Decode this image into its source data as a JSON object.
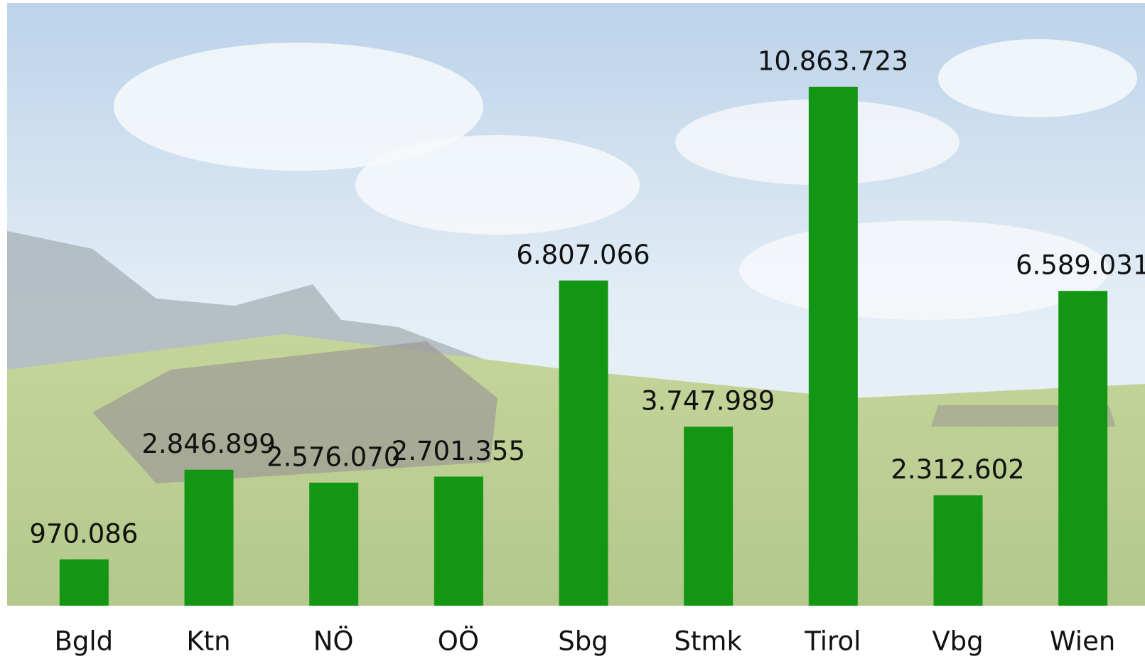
{
  "chart_data": {
    "type": "bar",
    "categories": [
      "Bgld",
      "Ktn",
      "NÖ",
      "OÖ",
      "Sbg",
      "Stmk",
      "Tirol",
      "Vbg",
      "Wien"
    ],
    "values": [
      970086,
      2846899,
      2576070,
      2701355,
      6807066,
      3747989,
      10863723,
      2312602,
      6589031
    ],
    "value_labels": [
      "970.086",
      "2.846.899",
      "2.576.070",
      "2.701.355",
      "6.807.066",
      "3.747.989",
      "10.863.723",
      "2.312.602",
      "6.589.031"
    ],
    "color": "#139613"
  }
}
